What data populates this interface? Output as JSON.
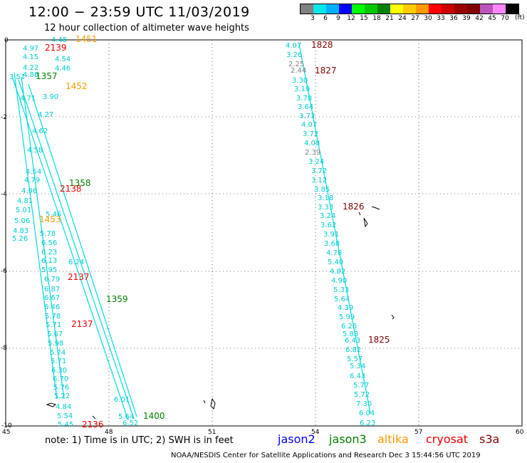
{
  "header": {
    "title": "12:00 − 23:59 UTC 11/03/2019",
    "subtitle": "12 hour collection of altimeter wave heights"
  },
  "legend": {
    "colors": [
      "#808080",
      "#00e8e8",
      "#00b0ff",
      "#0000ff",
      "#00ff00",
      "#00c800",
      "#008000",
      "#ffff00",
      "#ffcc00",
      "#ff9900",
      "#ff0000",
      "#cc0000",
      "#990000",
      "#800000",
      "#bb55bb",
      "#ff88ff",
      "#000000"
    ],
    "labels": [
      "3",
      "6",
      "9",
      "12",
      "15",
      "18",
      "21",
      "24",
      "27",
      "30",
      "33",
      "36",
      "39",
      "42",
      "45",
      "70"
    ],
    "unit": "(ft)"
  },
  "map": {
    "y_ticks": [
      "0",
      "-2",
      "-4",
      "-6",
      "-8",
      "-10"
    ],
    "x_ticks": [
      "45",
      "48",
      "51",
      "54",
      "57",
      "60"
    ]
  },
  "track_labels": [
    {
      "text": "4.48",
      "color": "#00cccc"
    },
    {
      "text": "1451",
      "color": "#ff9900"
    },
    {
      "text": "4.97",
      "color": "#00cccc"
    },
    {
      "text": "2139",
      "color": "#ee0000"
    },
    {
      "text": "4.15",
      "color": "#00cccc"
    },
    {
      "text": "4.54",
      "color": "#00cccc"
    },
    {
      "text": "4.22",
      "color": "#00cccc"
    },
    {
      "text": "4.46",
      "color": "#00cccc"
    },
    {
      "text": "4.86",
      "color": "#00cccc"
    },
    {
      "text": "3.51",
      "color": "#00cccc"
    },
    {
      "text": "1357",
      "color": "#008000"
    },
    {
      "text": "1452",
      "color": "#ff9900"
    },
    {
      "text": "3.90",
      "color": "#00cccc"
    },
    {
      "text": "4.71",
      "color": "#00cccc"
    },
    {
      "text": "4.27",
      "color": "#00cccc"
    },
    {
      "text": "4.62",
      "color": "#00cccc"
    },
    {
      "text": "4.58",
      "color": "#00cccc"
    },
    {
      "text": "4.54",
      "color": "#00cccc"
    },
    {
      "text": "4.79",
      "color": "#00cccc"
    },
    {
      "text": "4.96",
      "color": "#00cccc"
    },
    {
      "text": "1358",
      "color": "#008000"
    },
    {
      "text": "2138",
      "color": "#ee0000"
    },
    {
      "text": "4.81",
      "color": "#00cccc"
    },
    {
      "text": "5.01",
      "color": "#00cccc"
    },
    {
      "text": "5.46",
      "color": "#00cccc"
    },
    {
      "text": "1453",
      "color": "#ff9900"
    },
    {
      "text": "5.06",
      "color": "#00cccc"
    },
    {
      "text": "4.83",
      "color": "#00cccc"
    },
    {
      "text": "5.78",
      "color": "#00cccc"
    },
    {
      "text": "5.26",
      "color": "#00cccc"
    },
    {
      "text": "6.56",
      "color": "#00cccc"
    },
    {
      "text": "6.23",
      "color": "#00cccc"
    },
    {
      "text": "6.13",
      "color": "#00cccc"
    },
    {
      "text": "6.24",
      "color": "#00cccc"
    },
    {
      "text": "5.95",
      "color": "#00cccc"
    },
    {
      "text": "2137",
      "color": "#ee0000"
    },
    {
      "text": "6.79",
      "color": "#00cccc"
    },
    {
      "text": "6.87",
      "color": "#00cccc"
    },
    {
      "text": "1359",
      "color": "#008000"
    },
    {
      "text": "6.67",
      "color": "#00cccc"
    },
    {
      "text": "6.46",
      "color": "#00cccc"
    },
    {
      "text": "5.78",
      "color": "#00cccc"
    },
    {
      "text": "5.71",
      "color": "#00cccc"
    },
    {
      "text": "2137",
      "color": "#ee0000"
    },
    {
      "text": "5.67",
      "color": "#00cccc"
    },
    {
      "text": "5.98",
      "color": "#00cccc"
    },
    {
      "text": "5.74",
      "color": "#00cccc"
    },
    {
      "text": "5.71",
      "color": "#00cccc"
    },
    {
      "text": "6.30",
      "color": "#00cccc"
    },
    {
      "text": "6.70",
      "color": "#00cccc"
    },
    {
      "text": "5.76",
      "color": "#00cccc"
    },
    {
      "text": "5.22",
      "color": "#00cccc"
    },
    {
      "text": "4.84",
      "color": "#00cccc"
    },
    {
      "text": "5.54",
      "color": "#00cccc"
    },
    {
      "text": "5.45",
      "color": "#00cccc"
    },
    {
      "text": "2136",
      "color": "#ee0000"
    },
    {
      "text": "6.01",
      "color": "#00cccc"
    },
    {
      "text": "5.64",
      "color": "#00cccc"
    },
    {
      "text": "6.52",
      "color": "#00cccc"
    },
    {
      "text": "1400",
      "color": "#008000"
    },
    {
      "text": "4.07",
      "color": "#00cccc"
    },
    {
      "text": "1828",
      "color": "#800000"
    },
    {
      "text": "3.26",
      "color": "#00cccc"
    },
    {
      "text": "2.25",
      "color": "#808080"
    },
    {
      "text": "2.44",
      "color": "#808080"
    },
    {
      "text": "1827",
      "color": "#800000"
    },
    {
      "text": "3.30",
      "color": "#00cccc"
    },
    {
      "text": "3.19",
      "color": "#00cccc"
    },
    {
      "text": "3.78",
      "color": "#00cccc"
    },
    {
      "text": "3.64",
      "color": "#00cccc"
    },
    {
      "text": "3.73",
      "color": "#00cccc"
    },
    {
      "text": "4.07",
      "color": "#00cccc"
    },
    {
      "text": "3.72",
      "color": "#00cccc"
    },
    {
      "text": "4.08",
      "color": "#00cccc"
    },
    {
      "text": "2.39",
      "color": "#808080"
    },
    {
      "text": "3.24",
      "color": "#00cccc"
    },
    {
      "text": "3.72",
      "color": "#00cccc"
    },
    {
      "text": "3.12",
      "color": "#00cccc"
    },
    {
      "text": "3.85",
      "color": "#00cccc"
    },
    {
      "text": "3.18",
      "color": "#00cccc"
    },
    {
      "text": "3.33",
      "color": "#00cccc"
    },
    {
      "text": "1826",
      "color": "#800000"
    },
    {
      "text": "3.24",
      "color": "#00cccc"
    },
    {
      "text": "3.62",
      "color": "#00cccc"
    },
    {
      "text": "3.91",
      "color": "#00cccc"
    },
    {
      "text": "3.68",
      "color": "#00cccc"
    },
    {
      "text": "4.78",
      "color": "#00cccc"
    },
    {
      "text": "5.40",
      "color": "#00cccc"
    },
    {
      "text": "4.82",
      "color": "#00cccc"
    },
    {
      "text": "4.90",
      "color": "#00cccc"
    },
    {
      "text": "5.33",
      "color": "#00cccc"
    },
    {
      "text": "5.64",
      "color": "#00cccc"
    },
    {
      "text": "4.39",
      "color": "#00cccc"
    },
    {
      "text": "5.99",
      "color": "#00cccc"
    },
    {
      "text": "6.26",
      "color": "#00cccc"
    },
    {
      "text": "5.88",
      "color": "#00cccc"
    },
    {
      "text": "6.43",
      "color": "#00cccc"
    },
    {
      "text": "1825",
      "color": "#800000"
    },
    {
      "text": "6.82",
      "color": "#00cccc"
    },
    {
      "text": "5.57",
      "color": "#00cccc"
    },
    {
      "text": "5.34",
      "color": "#00cccc"
    },
    {
      "text": "6.43",
      "color": "#00cccc"
    },
    {
      "text": "5.77",
      "color": "#00cccc"
    },
    {
      "text": "5.72",
      "color": "#00cccc"
    },
    {
      "text": "7.30",
      "color": "#00cccc"
    },
    {
      "text": "6.04",
      "color": "#00cccc"
    },
    {
      "text": "6.23",
      "color": "#00cccc"
    }
  ],
  "footer": {
    "note": "note:  1) Time is in UTC;  2) SWH is in feet",
    "satellites": [
      {
        "name": "jason2",
        "color": "#0000ff"
      },
      {
        "name": "jason3",
        "color": "#008000"
      },
      {
        "name": "altika",
        "color": "#ff9900"
      },
      {
        "name": "cryosat",
        "color": "#ee0000"
      },
      {
        "name": "s3a",
        "color": "#800000"
      }
    ],
    "credit": "NOAA/NESDIS Center for Satellite Applications and Research    Dec  3 15:44:56 UTC 2019"
  }
}
